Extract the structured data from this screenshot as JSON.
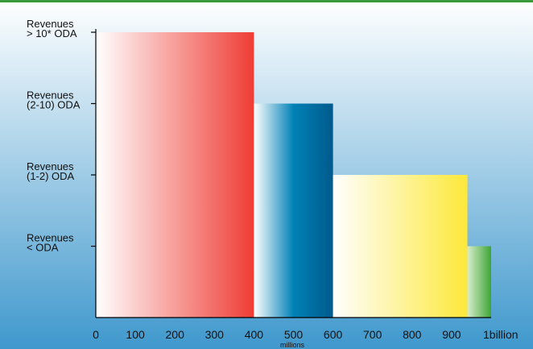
{
  "chart_data": {
    "type": "bar",
    "title": "",
    "xlabel": "millions",
    "ylabel": "",
    "x_ticks": [
      "0",
      "100",
      "200",
      "300",
      "400",
      "500",
      "600",
      "700",
      "800",
      "900",
      "1billion"
    ],
    "xlim": [
      0,
      1000
    ],
    "categories": [
      {
        "lines": [
          "Revenues",
          "> 10* ODA"
        ]
      },
      {
        "lines": [
          "Revenues",
          "(2-10) ODA"
        ]
      },
      {
        "lines": [
          "Revenues",
          "(1-2) ODA"
        ]
      },
      {
        "lines": [
          "Revenues",
          "< ODA"
        ]
      }
    ],
    "series": [
      {
        "x_start": 0,
        "x_end": 400,
        "level": 4,
        "colors": [
          "#ffffff",
          "#ef3d35"
        ]
      },
      {
        "x_start": 400,
        "x_end": 600,
        "level": 3,
        "colors": [
          "#ffffff",
          "#0081b6",
          "#005a8c"
        ]
      },
      {
        "x_start": 600,
        "x_end": 940,
        "level": 2,
        "colors": [
          "#ffffff",
          "#fde83a"
        ]
      },
      {
        "x_start": 940,
        "x_end": 1000,
        "level": 1,
        "colors": [
          "#d7edcc",
          "#3ea535"
        ]
      }
    ],
    "grid": false,
    "legend": "none",
    "top_rule_color": "#3a9a3a",
    "background_colors": [
      "#ffffff",
      "#3f98cd"
    ]
  }
}
